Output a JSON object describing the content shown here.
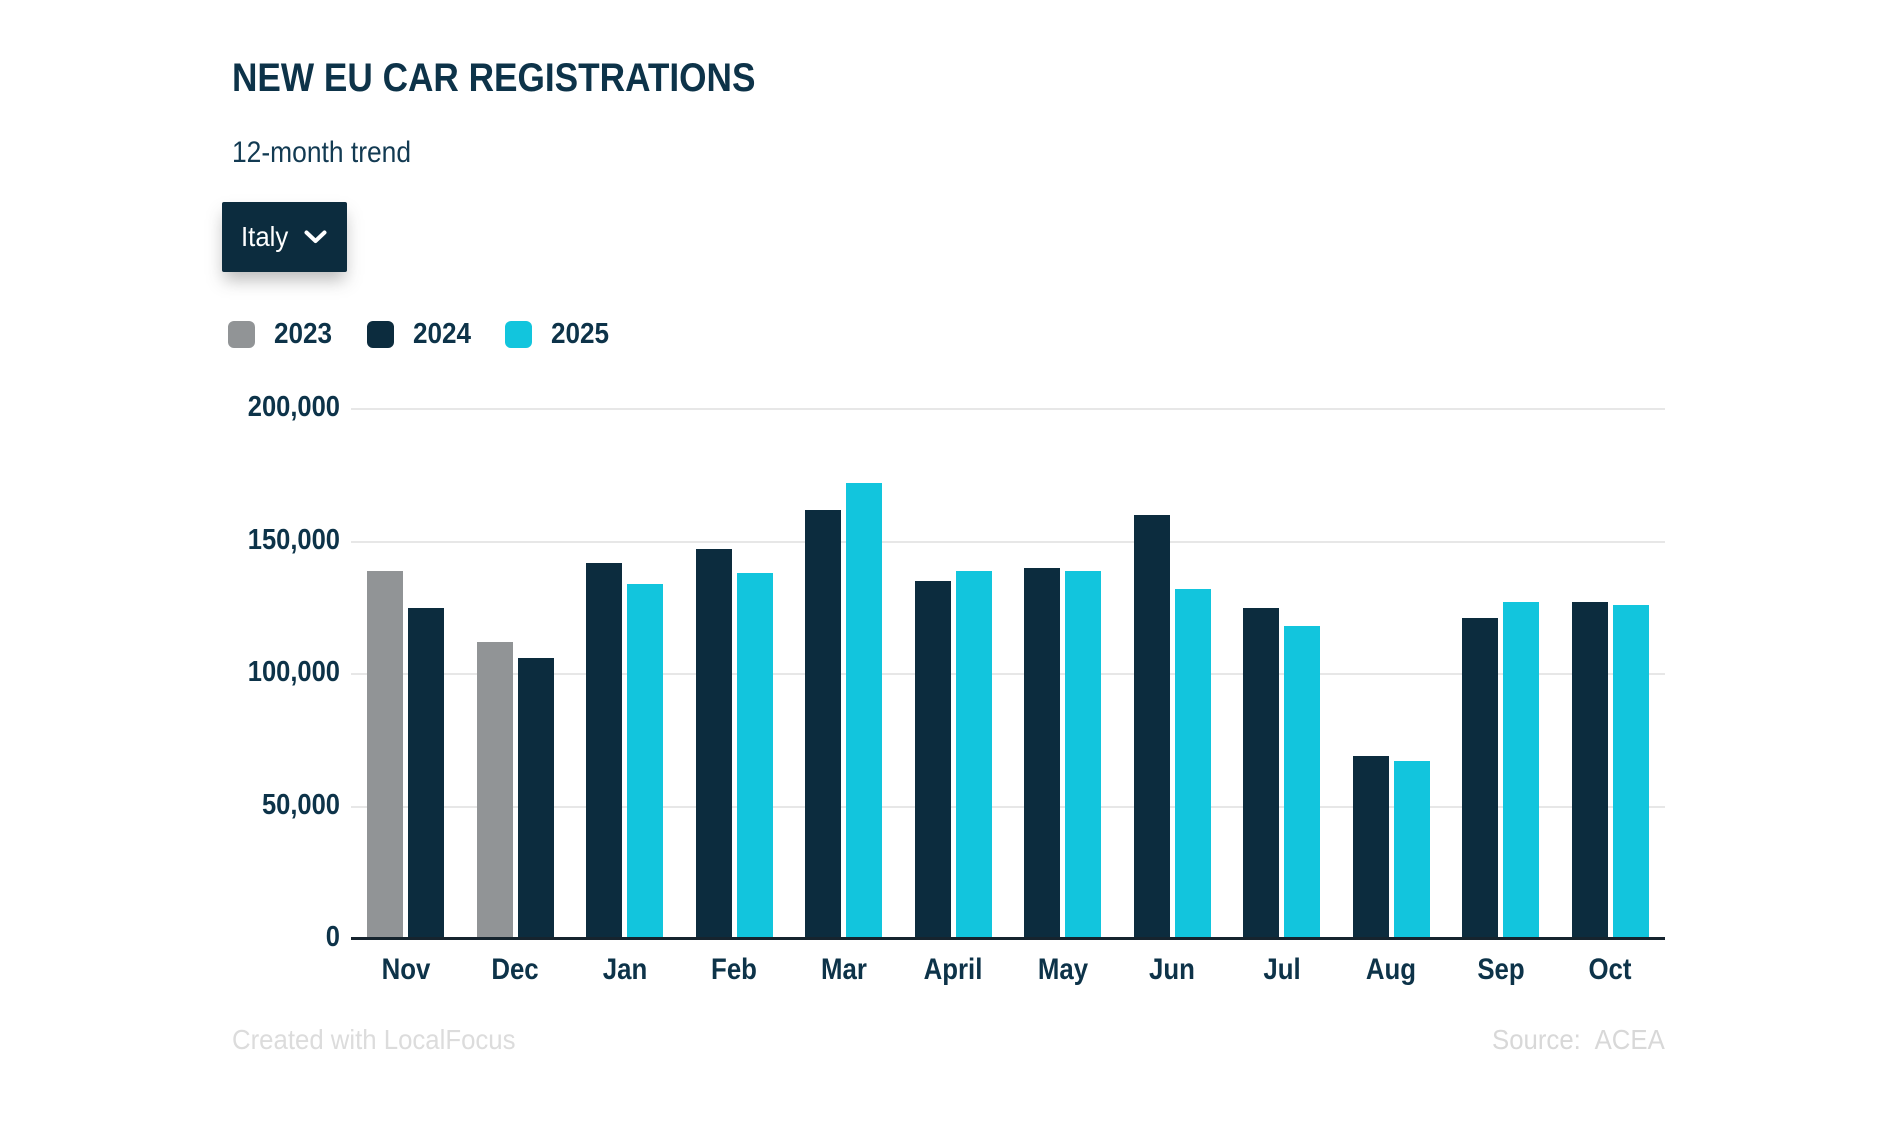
{
  "header": {
    "title": "NEW EU CAR REGISTRATIONS",
    "subtitle": "12-month trend"
  },
  "country_selector": {
    "selected": "Italy",
    "icon": "chevron-down-icon"
  },
  "legend": [
    {
      "label": "2023",
      "color": "#919496"
    },
    {
      "label": "2024",
      "color": "#0c2c3e"
    },
    {
      "label": "2025",
      "color": "#12c5dd"
    }
  ],
  "chart_data": {
    "type": "bar",
    "title": "NEW EU CAR REGISTRATIONS",
    "subtitle": "12-month trend",
    "country": "Italy",
    "categories": [
      "Nov",
      "Dec",
      "Jan",
      "Feb",
      "Mar",
      "April",
      "May",
      "Jun",
      "Jul",
      "Aug",
      "Sep",
      "Oct"
    ],
    "series": [
      {
        "name": "2023",
        "color": "#919496",
        "values": [
          139000,
          112000,
          null,
          null,
          null,
          null,
          null,
          null,
          null,
          null,
          null,
          null
        ]
      },
      {
        "name": "2024",
        "color": "#0c2c3e",
        "values": [
          125000,
          106000,
          142000,
          147000,
          162000,
          135000,
          140000,
          160000,
          125000,
          69000,
          121000,
          127000
        ]
      },
      {
        "name": "2025",
        "color": "#12c5dd",
        "values": [
          null,
          null,
          134000,
          138000,
          172000,
          139000,
          139000,
          132000,
          118000,
          67000,
          127000,
          126000
        ]
      }
    ],
    "ylim": [
      0,
      200000
    ],
    "yticks": [
      {
        "value": 200000,
        "label": "200,000"
      },
      {
        "value": 150000,
        "label": "150,000"
      },
      {
        "value": 100000,
        "label": "100,000"
      },
      {
        "value": 50000,
        "label": "50,000"
      },
      {
        "value": 0,
        "label": "0"
      }
    ],
    "grid": true,
    "legend_position": "top-left",
    "axis_color": "#16242e",
    "grid_color": "#e7e7e7",
    "text_color": "#0d3349"
  },
  "footer": {
    "credit": "Created with LocalFocus",
    "source_label": "Source:",
    "source_value": "ACEA"
  }
}
